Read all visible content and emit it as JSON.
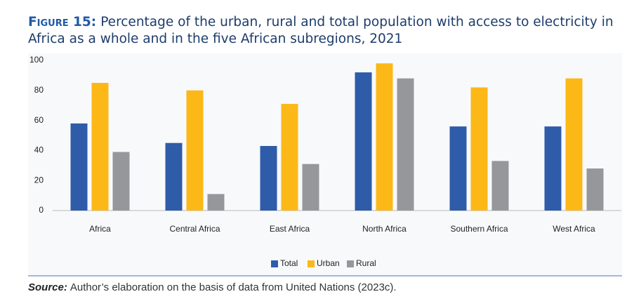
{
  "chart_data": {
    "type": "bar",
    "title_label": "Figure 15:",
    "title": "Percentage of the urban, rural and total population with access to electricity in Africa as a whole and in the five African subregions, 2021",
    "categories": [
      "Africa",
      "Central Africa",
      "East Africa",
      "North Africa",
      "Southern Africa",
      "West Africa"
    ],
    "series": [
      {
        "name": "Total",
        "color": "#2e5ca8",
        "values": [
          58,
          45,
          43,
          92,
          56,
          56
        ]
      },
      {
        "name": "Urban",
        "color": "#fbb817",
        "values": [
          85,
          80,
          71,
          98,
          82,
          88
        ]
      },
      {
        "name": "Rural",
        "color": "#96979b",
        "values": [
          39,
          11,
          31,
          88,
          33,
          28
        ]
      }
    ],
    "ylim": [
      0,
      100
    ],
    "yticks": [
      0,
      20,
      40,
      60,
      80,
      100
    ],
    "grid": false,
    "legend": "bottom",
    "source_label": "Source:",
    "source": "Author’s elaboration on the basis of data from United Nations (2023c)."
  }
}
